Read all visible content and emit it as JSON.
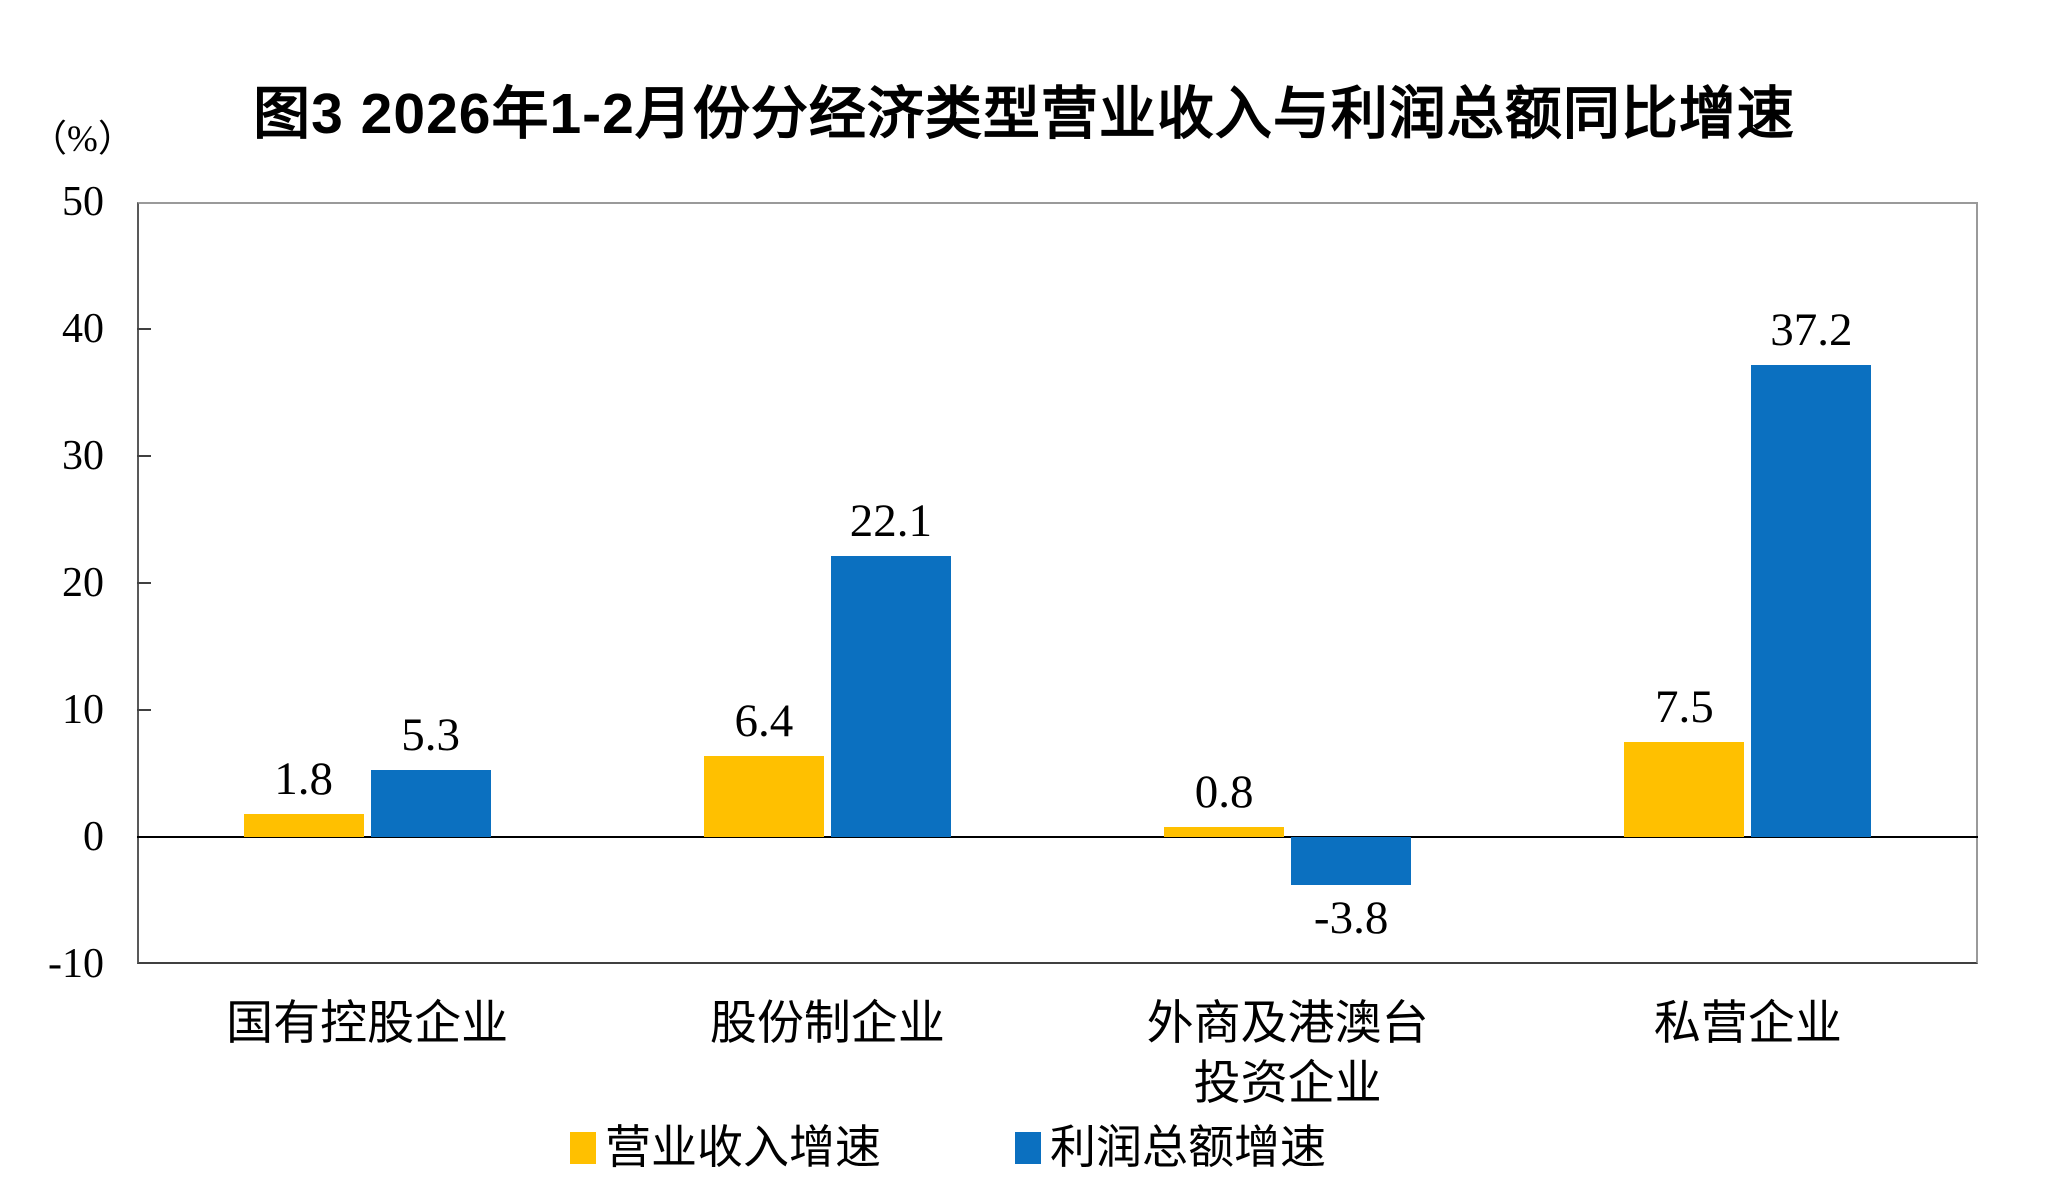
{
  "figure": {
    "title": "图3 2026年1-2月份分经济类型营业收入与利润总额同比增速",
    "unit_label": "（%）"
  },
  "chart_data": {
    "type": "bar",
    "title": "图3 2026年1-2月份分经济类型营业收入与利润总额同比增速",
    "xlabel": "",
    "ylabel": "（%）",
    "ylim": [
      -10,
      50
    ],
    "yticks": [
      50,
      40,
      30,
      20,
      10,
      0,
      -10
    ],
    "grid": false,
    "legend_position": "bottom",
    "categories": [
      "国有控股企业",
      "股份制企业",
      "外商及港澳台投资企业",
      "私营企业"
    ],
    "categories_display": [
      [
        "国有控股企业"
      ],
      [
        "股份制企业"
      ],
      [
        "外商及港澳台",
        "投资企业"
      ],
      [
        "私营企业"
      ]
    ],
    "series": [
      {
        "name": "营业收入增速",
        "color": "#FFC000",
        "values": [
          1.8,
          6.4,
          0.8,
          7.5
        ]
      },
      {
        "name": "利润总额增速",
        "color": "#0B70C0",
        "values": [
          5.3,
          22.1,
          -3.8,
          37.2
        ]
      }
    ],
    "colors": {
      "revenue_series": "#FFC000",
      "profit_series": "#0B70C0",
      "axis_line": "#595959",
      "zero_line": "#000000",
      "plot_border": "#9a9a9a",
      "text": "#000000",
      "background": "#ffffff"
    }
  }
}
